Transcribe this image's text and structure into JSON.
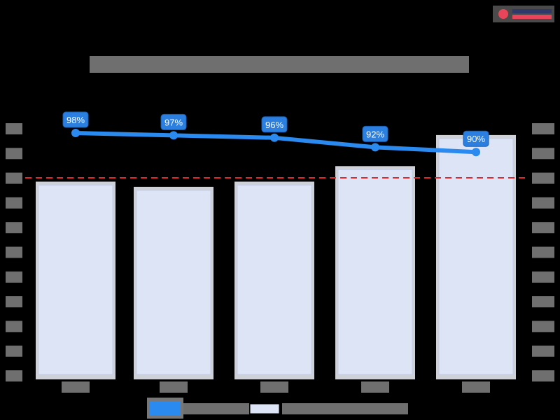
{
  "logo": {
    "name": "brand-logo",
    "colors": {
      "mark": "#e8455a",
      "text_top": "#2f3a6b",
      "text_bottom": "#e8455a"
    }
  },
  "chart_data": {
    "type": "bar+line",
    "title": "",
    "title_redacted": true,
    "categories": [
      "",
      "",
      "",
      "",
      ""
    ],
    "categories_redacted": true,
    "series": [
      {
        "name": "",
        "type": "line",
        "axis": "left",
        "color": "#2a8af0",
        "values": [
          98,
          97,
          96,
          92,
          90
        ],
        "labels": [
          "98%",
          "97%",
          "96%",
          "92%",
          "90%"
        ]
      },
      {
        "name": "",
        "type": "bar",
        "axis": "right",
        "color": "#dde4f6",
        "relative_heights": [
          0.75,
          0.73,
          0.75,
          0.81,
          0.93
        ]
      }
    ],
    "reference_line": {
      "style": "dashed",
      "color": "#e8252a",
      "axis": "left"
    },
    "left_axis": {
      "ticks_redacted": true,
      "tick_count": 11
    },
    "right_axis": {
      "ticks_redacted": true,
      "tick_count": 11
    },
    "legend": {
      "position": "bottom",
      "entries_redacted": true
    },
    "grid": false
  }
}
